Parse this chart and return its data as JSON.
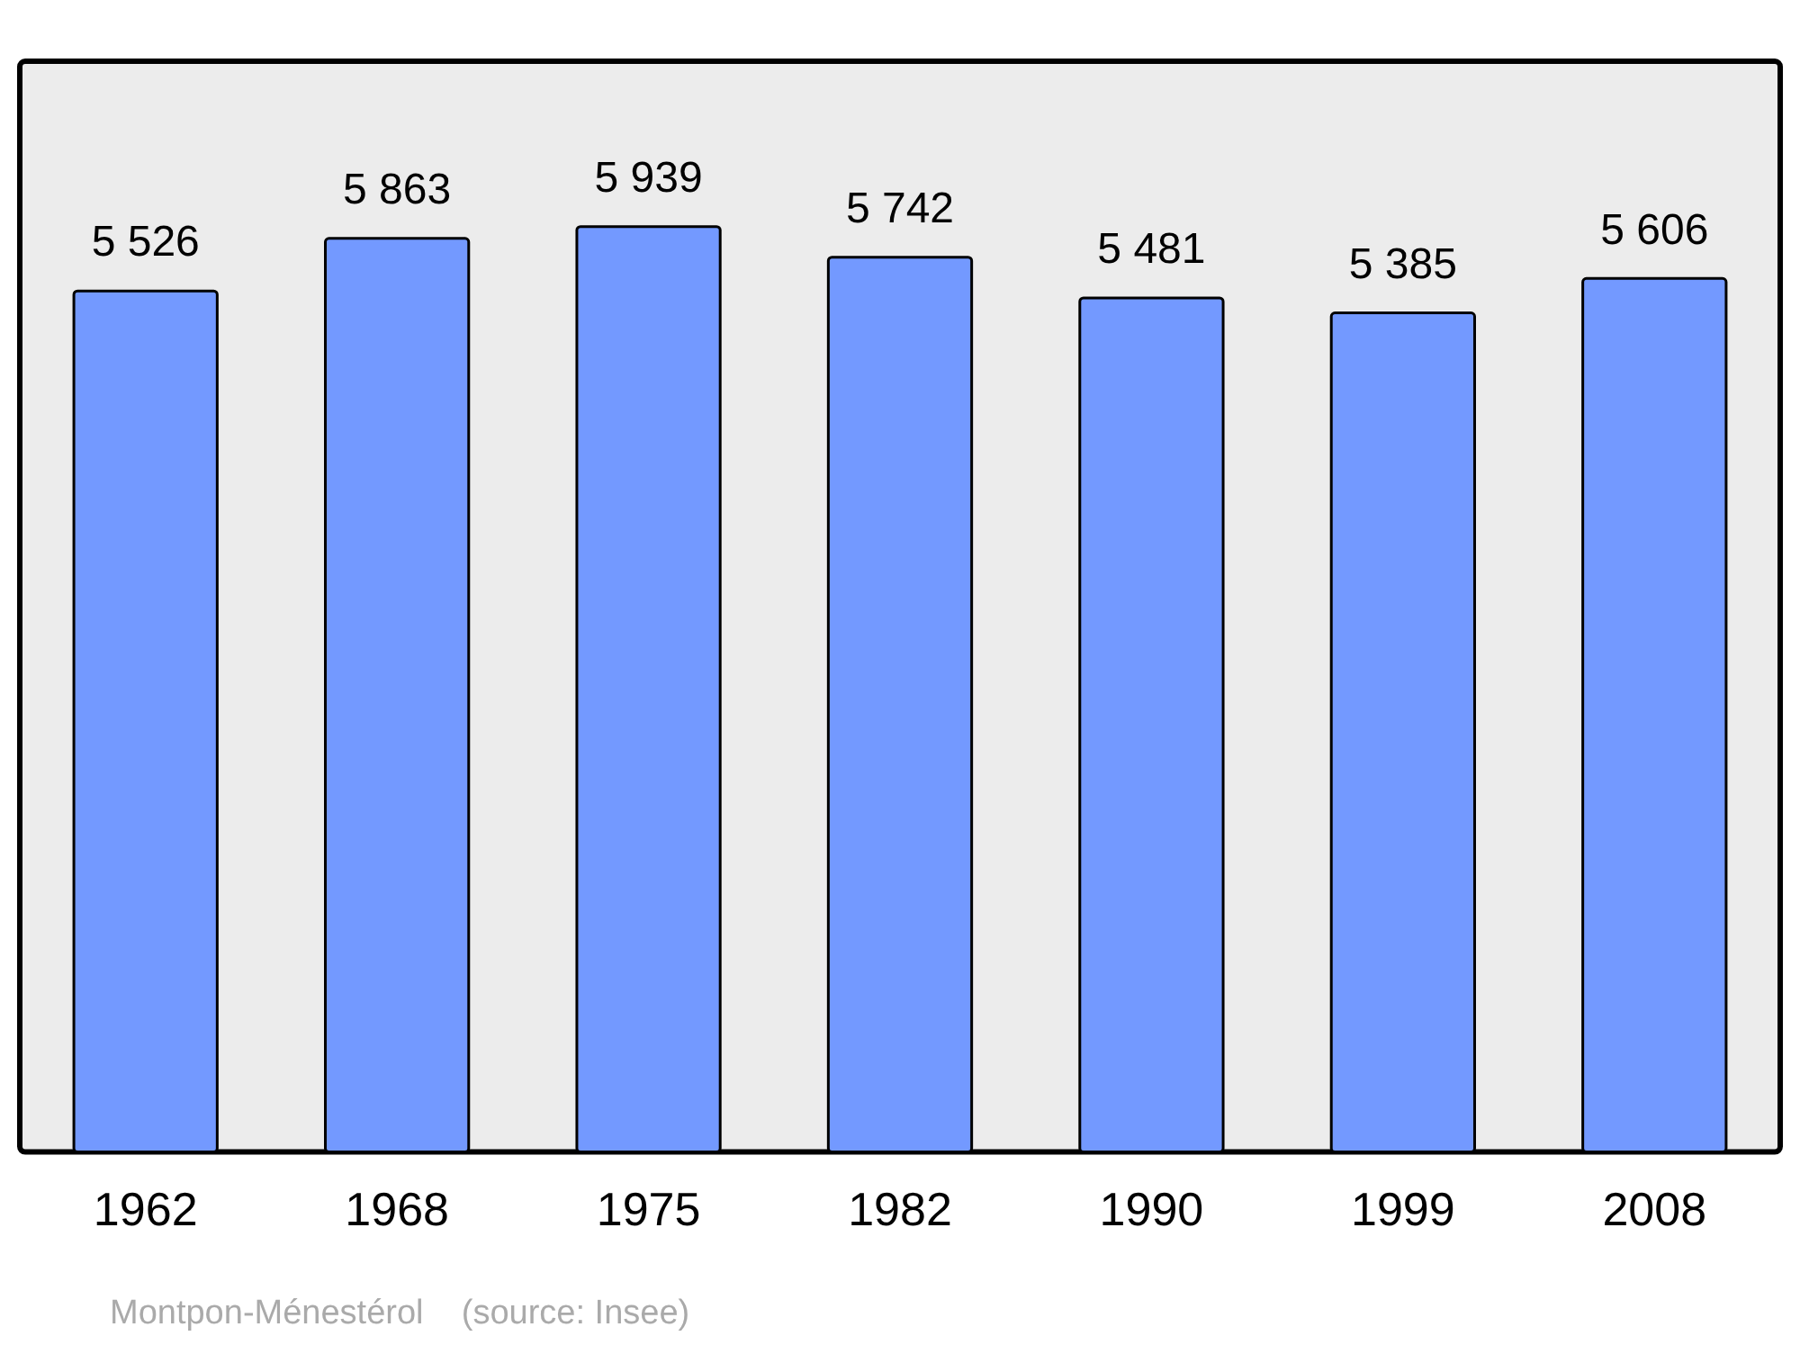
{
  "chart_data": {
    "type": "bar",
    "categories": [
      "1962",
      "1968",
      "1975",
      "1982",
      "1990",
      "1999",
      "2008"
    ],
    "values": [
      5526,
      5863,
      5939,
      5742,
      5481,
      5385,
      5606
    ],
    "value_labels": [
      "5 526",
      "5 863",
      "5 939",
      "5 742",
      "5 481",
      "5 385",
      "5 606"
    ],
    "color": "#7399ff",
    "grid": false,
    "legend": false,
    "annotations": [
      "Montpon-Ménestérol    (source: Insee)"
    ]
  }
}
